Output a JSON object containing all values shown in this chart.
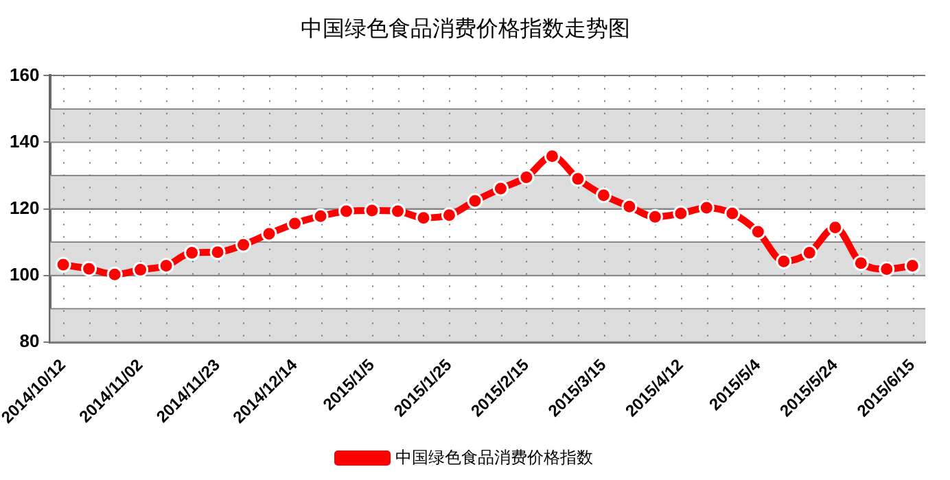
{
  "chart_data": {
    "type": "line",
    "title": "中国绿色食品消费价格指数走势图",
    "categories": [
      "2014/10/12",
      null,
      null,
      "2014/11/02",
      null,
      null,
      "2014/11/23",
      null,
      null,
      "2014/12/14",
      null,
      null,
      "2015/1/5",
      null,
      null,
      "2015/1/25",
      null,
      null,
      "2015/2/15",
      null,
      null,
      "2015/3/15",
      null,
      null,
      "2015/4/12",
      null,
      null,
      "2015/5/4",
      null,
      null,
      "2015/5/24",
      null,
      null,
      "2015/6/15"
    ],
    "series": [
      {
        "name": "中国绿色食品消费价格指数",
        "color": "#ff0000",
        "values": [
          103.2,
          102.0,
          100.3,
          101.7,
          102.9,
          106.8,
          107.0,
          109.2,
          112.5,
          115.6,
          117.8,
          119.3,
          119.5,
          119.3,
          117.3,
          118.1,
          122.4,
          126.1,
          129.5,
          135.8,
          129.0,
          124.1,
          120.7,
          117.6,
          118.6,
          120.3,
          118.6,
          113.1,
          104.2,
          106.8,
          114.4,
          103.7,
          101.9,
          102.9
        ]
      }
    ],
    "ylim": [
      80,
      160
    ],
    "yticks": [
      80,
      100,
      120,
      140,
      160
    ],
    "bands": [
      {
        "axis": "y",
        "from": 80,
        "to": 90,
        "color": "#dcdcdc"
      },
      {
        "axis": "y",
        "from": 100,
        "to": 110,
        "color": "#dcdcdc"
      },
      {
        "axis": "y",
        "from": 120,
        "to": 130,
        "color": "#dcdcdc"
      },
      {
        "axis": "y",
        "from": 140,
        "to": 150,
        "color": "#dcdcdc"
      }
    ],
    "grid": true,
    "legend": "bottom",
    "marker": "circle",
    "line_style": "solid"
  }
}
